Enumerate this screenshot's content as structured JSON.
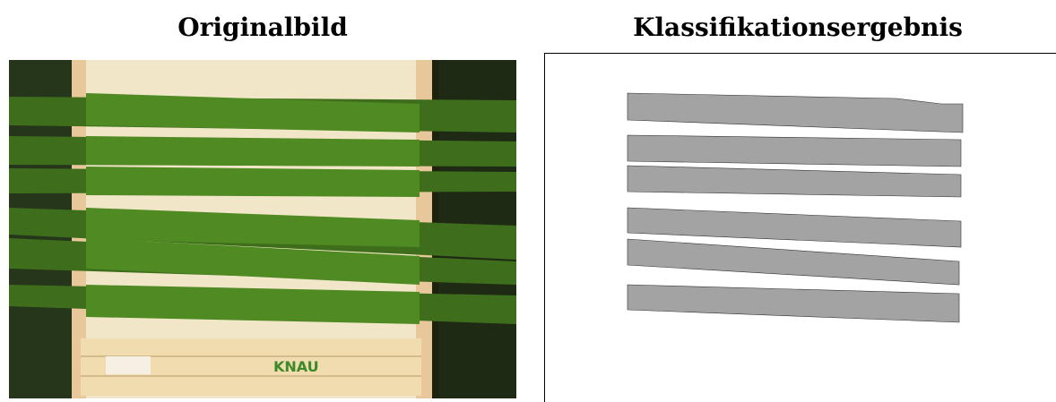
{
  "panels": [
    {
      "title": "Originalbild"
    },
    {
      "title": "Klassifikationsergebnis"
    }
  ]
}
